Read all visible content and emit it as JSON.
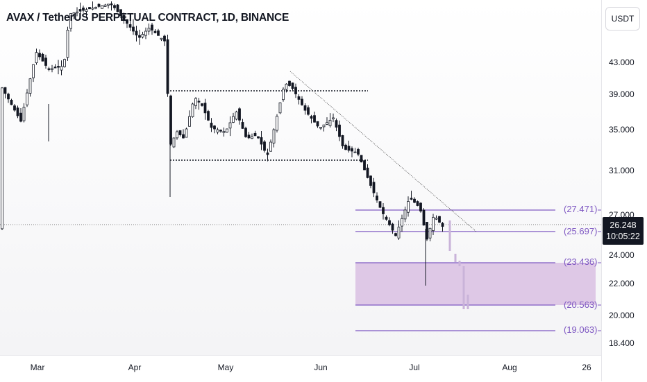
{
  "title": "AVAX / TetherUS PERPETUAL CONTRACT, 1D, BINANCE",
  "currency": "USDT",
  "price_ticks": [
    "43.000",
    "39.000",
    "35.000",
    "31.000",
    "27.000",
    "24.000",
    "22.000",
    "20.000",
    "18.400"
  ],
  "time_ticks": [
    "Mar",
    "Apr",
    "May",
    "Jun",
    "Jul",
    "Aug",
    "26"
  ],
  "levels": [
    "(27.471)",
    "(25.697)",
    "(23.436)",
    "(20.563)",
    "(19.063)"
  ],
  "last_price": {
    "price": "26.248",
    "countdown": "10:05:22"
  },
  "colors": {
    "level_line": "#7e57c2",
    "zone_fill": "#d5b8e0",
    "candle": "#131722",
    "axis_text": "#131722"
  }
}
